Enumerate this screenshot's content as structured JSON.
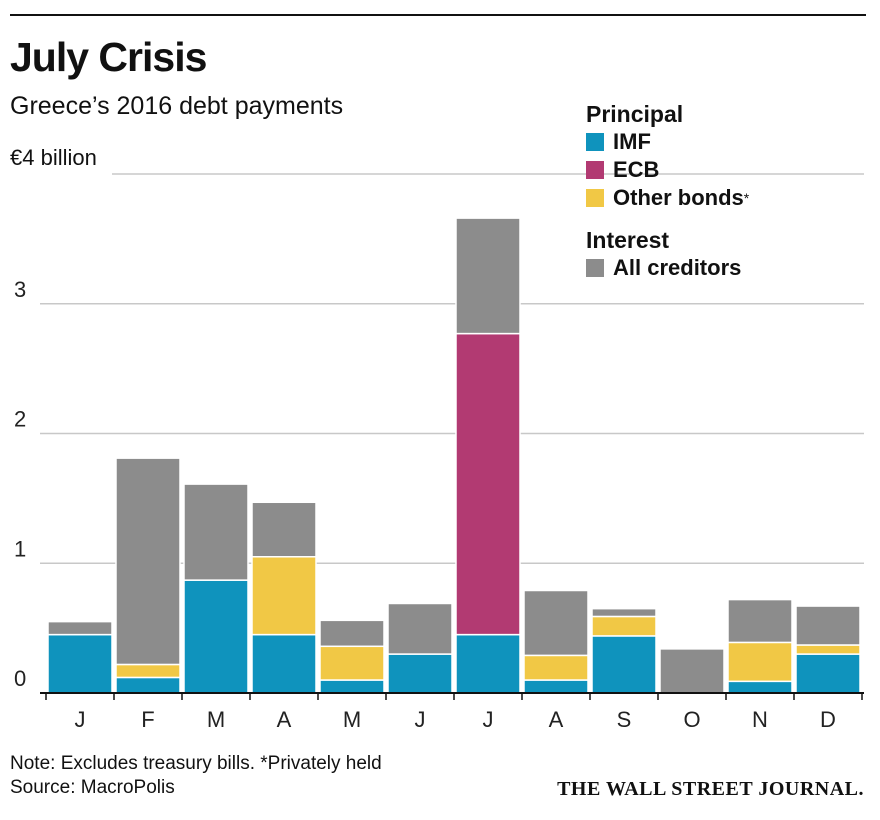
{
  "header": {
    "title": "July Crisis",
    "subtitle": "Greece’s 2016 debt payments",
    "unit_label": "€4 billion"
  },
  "legend": {
    "principal_heading": "Principal",
    "interest_heading": "Interest",
    "items": {
      "imf": "IMF",
      "ecb": "ECB",
      "other": "Other bonds",
      "other_marker": "*",
      "all": "All creditors"
    }
  },
  "footer": {
    "note": "Note: Excludes treasury bills. *Privately held",
    "source": "Source: MacroPolis",
    "brand": "THE WALL STREET JOURNAL."
  },
  "colors": {
    "imf": "#0f93bd",
    "ecb": "#b23a72",
    "other": "#f1c845",
    "interest": "#8c8c8c",
    "grid": "#c8c8c8",
    "axis": "#111111"
  },
  "chart_data": {
    "type": "bar",
    "stacked": true,
    "categories": [
      "J",
      "F",
      "M",
      "A",
      "M",
      "J",
      "J",
      "A",
      "S",
      "O",
      "N",
      "D"
    ],
    "y_ticks": [
      "0",
      "1",
      "2",
      "3"
    ],
    "ylim": [
      0,
      4
    ],
    "grid": true,
    "legend_position": "top-right",
    "series": [
      {
        "name": "IMF",
        "key": "imf",
        "values": [
          0.45,
          0.12,
          0.87,
          0.45,
          0.1,
          0.3,
          0.45,
          0.1,
          0.44,
          0.0,
          0.09,
          0.3
        ]
      },
      {
        "name": "ECB",
        "key": "ecb",
        "values": [
          0.0,
          0.0,
          0.0,
          0.0,
          0.0,
          0.0,
          2.32,
          0.0,
          0.0,
          0.0,
          0.0,
          0.0
        ]
      },
      {
        "name": "Other bonds",
        "key": "other",
        "values": [
          0.0,
          0.1,
          0.0,
          0.6,
          0.26,
          0.0,
          0.0,
          0.19,
          0.15,
          0.0,
          0.3,
          0.07
        ]
      },
      {
        "name": "All creditors",
        "key": "interest",
        "values": [
          0.1,
          1.59,
          0.74,
          0.42,
          0.2,
          0.39,
          0.89,
          0.5,
          0.06,
          0.34,
          0.33,
          0.3
        ]
      }
    ]
  }
}
